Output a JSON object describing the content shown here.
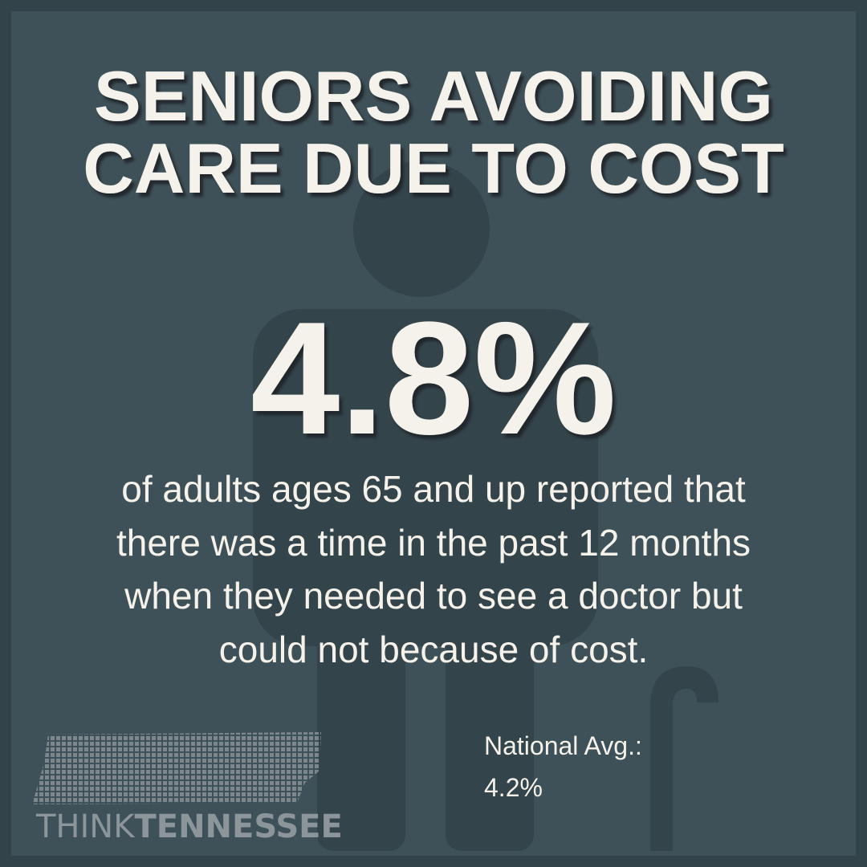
{
  "header": {
    "title_lines": [
      "SENIORS AVOIDING",
      "CARE DUE TO COST"
    ]
  },
  "statistic": {
    "value": "4.8%",
    "description_lines": [
      "of adults ages 65 and up reported that",
      "there was a time in the past 12 months",
      "when they needed to see a doctor but",
      "could not because of cost."
    ]
  },
  "comparison": {
    "label": "National Avg.:",
    "value": "4.2%"
  },
  "logo": {
    "part1": "THINK",
    "part2": "TENNESSEE"
  }
}
